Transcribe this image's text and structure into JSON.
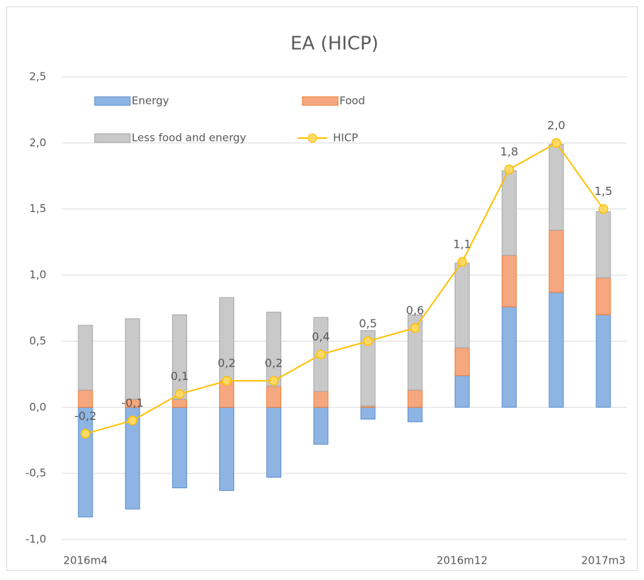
{
  "chart_data": {
    "type": "bar",
    "title": "EA (HICP)",
    "categories": [
      "2016m4",
      null,
      null,
      null,
      null,
      null,
      null,
      null,
      "2016m12",
      null,
      null,
      "2017m3"
    ],
    "series": [
      {
        "name": "Energy",
        "color": "#8db4e2",
        "values": [
          -0.83,
          -0.77,
          -0.61,
          -0.63,
          -0.53,
          -0.28,
          -0.09,
          -0.11,
          0.24,
          0.76,
          0.87,
          0.7
        ]
      },
      {
        "name": "Food",
        "color": "#f5a77f",
        "values": [
          0.13,
          0.06,
          0.06,
          0.2,
          0.16,
          0.12,
          0.01,
          0.13,
          0.21,
          0.39,
          0.47,
          0.28
        ]
      },
      {
        "name": "Less food and energy",
        "color": "#c9c9c9",
        "values": [
          0.49,
          0.61,
          0.64,
          0.63,
          0.56,
          0.56,
          0.57,
          0.57,
          0.64,
          0.64,
          0.65,
          0.5
        ]
      },
      {
        "name": "HICP",
        "type": "line",
        "color": "#ffc000",
        "values": [
          -0.2,
          -0.1,
          0.1,
          0.2,
          0.2,
          0.4,
          0.5,
          0.6,
          1.1,
          1.8,
          2.0,
          1.5
        ],
        "value_labels": [
          "-0,2",
          "-0,1",
          "0,1",
          "0,2",
          "0,2",
          "0,4",
          "0,5",
          "0,6",
          "1,1",
          "1,8",
          "2,0",
          "1,5"
        ]
      }
    ],
    "ylim": [
      -1.0,
      2.5
    ],
    "yticks": [
      {
        "value": -1.0,
        "label": "-1,0"
      },
      {
        "value": -0.5,
        "label": "-0,5"
      },
      {
        "value": 0,
        "label": "0,0"
      },
      {
        "value": 0.5,
        "label": "0,5"
      },
      {
        "value": 1.0,
        "label": "1,0"
      },
      {
        "value": 1.5,
        "label": "1,5"
      },
      {
        "value": 2.0,
        "label": "2,0"
      },
      {
        "value": 2.5,
        "label": "2,5"
      }
    ],
    "grid": true,
    "stacked": true,
    "legend": "upper left"
  }
}
